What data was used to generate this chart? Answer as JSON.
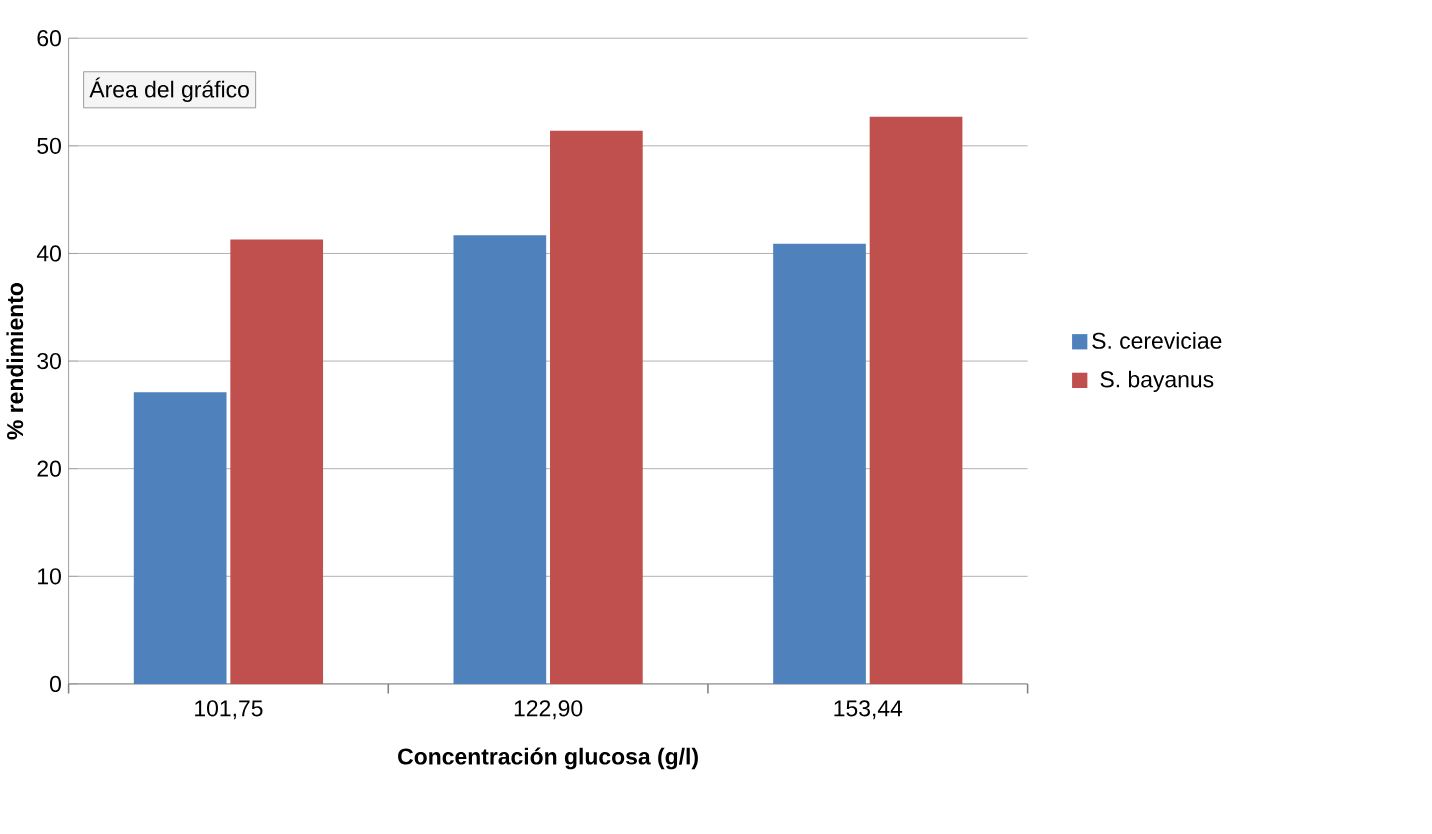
{
  "chart_data": {
    "type": "bar",
    "categories": [
      "101,75",
      "122,90",
      "153,44"
    ],
    "series": [
      {
        "name": "S. cereviciae",
        "color": "#4f81bd",
        "values": [
          27.1,
          41.7,
          40.9
        ]
      },
      {
        "name": "S. bayanus",
        "color": "#c0504d",
        "values": [
          41.3,
          51.4,
          52.7
        ]
      }
    ],
    "xlabel": "Concentración glucosa (g/l)",
    "ylabel": "% rendimiento",
    "ylim": [
      0,
      60
    ],
    "yticks": [
      0,
      10,
      20,
      30,
      40,
      50,
      60
    ],
    "grid": "y",
    "legend": "right",
    "annotations": [
      "Área del gráfico"
    ]
  }
}
